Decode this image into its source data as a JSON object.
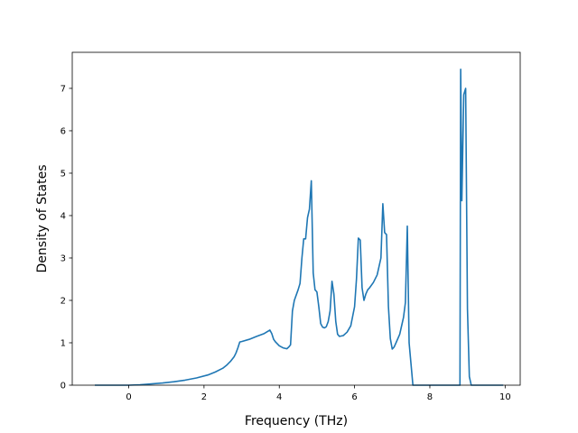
{
  "chart_data": {
    "type": "line",
    "title": "",
    "xlabel": "Frequency (THz)",
    "ylabel": "Density of States",
    "xlim": [
      -1.5,
      10.4
    ],
    "ylim": [
      0,
      7.85
    ],
    "xticks": [
      0,
      2,
      4,
      6,
      8,
      10
    ],
    "yticks": [
      0,
      1,
      2,
      3,
      4,
      5,
      6,
      7
    ],
    "grid": false,
    "color": "#1f77b4",
    "series": [
      {
        "x": [
          -0.9,
          -0.5,
          0.0,
          0.3,
          0.6,
          0.9,
          1.2,
          1.5,
          1.8,
          2.1,
          2.3,
          2.5,
          2.6,
          2.7,
          2.8,
          2.85,
          2.9,
          2.95,
          3.0,
          3.2,
          3.4,
          3.6,
          3.75,
          3.8,
          3.85,
          3.9,
          4.0,
          4.1,
          4.2,
          4.25,
          4.3,
          4.35,
          4.4,
          4.5,
          4.55,
          4.6,
          4.65,
          4.7,
          4.75,
          4.8,
          4.85,
          4.9,
          4.95,
          5.0,
          5.05,
          5.1,
          5.15,
          5.2,
          5.25,
          5.3,
          5.35,
          5.4,
          5.45,
          5.5,
          5.55,
          5.6,
          5.7,
          5.8,
          5.9,
          6.0,
          6.05,
          6.1,
          6.15,
          6.2,
          6.25,
          6.3,
          6.35,
          6.4,
          6.5,
          6.6,
          6.7,
          6.75,
          6.8,
          6.85,
          6.9,
          6.95,
          7.0,
          7.05,
          7.1,
          7.2,
          7.3,
          7.35,
          7.4,
          7.45,
          7.5,
          7.55,
          7.6,
          7.8,
          8.0,
          8.5,
          8.75,
          8.8,
          8.82,
          8.85,
          8.9,
          8.95,
          9.0,
          9.05,
          9.1,
          9.15,
          9.5,
          9.95
        ],
        "y": [
          0,
          0,
          0,
          0.01,
          0.03,
          0.05,
          0.08,
          0.12,
          0.17,
          0.24,
          0.31,
          0.4,
          0.47,
          0.56,
          0.67,
          0.76,
          0.88,
          1.02,
          1.03,
          1.08,
          1.15,
          1.22,
          1.3,
          1.22,
          1.08,
          1.02,
          0.93,
          0.88,
          0.86,
          0.9,
          0.95,
          1.75,
          2.0,
          2.25,
          2.4,
          3.0,
          3.45,
          3.45,
          3.95,
          4.15,
          4.82,
          2.65,
          2.25,
          2.2,
          1.85,
          1.45,
          1.37,
          1.35,
          1.38,
          1.5,
          1.75,
          2.45,
          2.15,
          1.5,
          1.2,
          1.15,
          1.17,
          1.25,
          1.4,
          1.85,
          2.5,
          3.47,
          3.42,
          2.3,
          2.0,
          2.15,
          2.25,
          2.3,
          2.42,
          2.6,
          3.0,
          4.28,
          3.6,
          3.55,
          1.85,
          1.1,
          0.85,
          0.9,
          1.0,
          1.2,
          1.6,
          1.95,
          3.75,
          1.0,
          0.5,
          0.0,
          0,
          0,
          0,
          0,
          0,
          0,
          7.45,
          4.35,
          6.85,
          7.0,
          1.8,
          0.2,
          0,
          0,
          0,
          0
        ]
      }
    ]
  }
}
